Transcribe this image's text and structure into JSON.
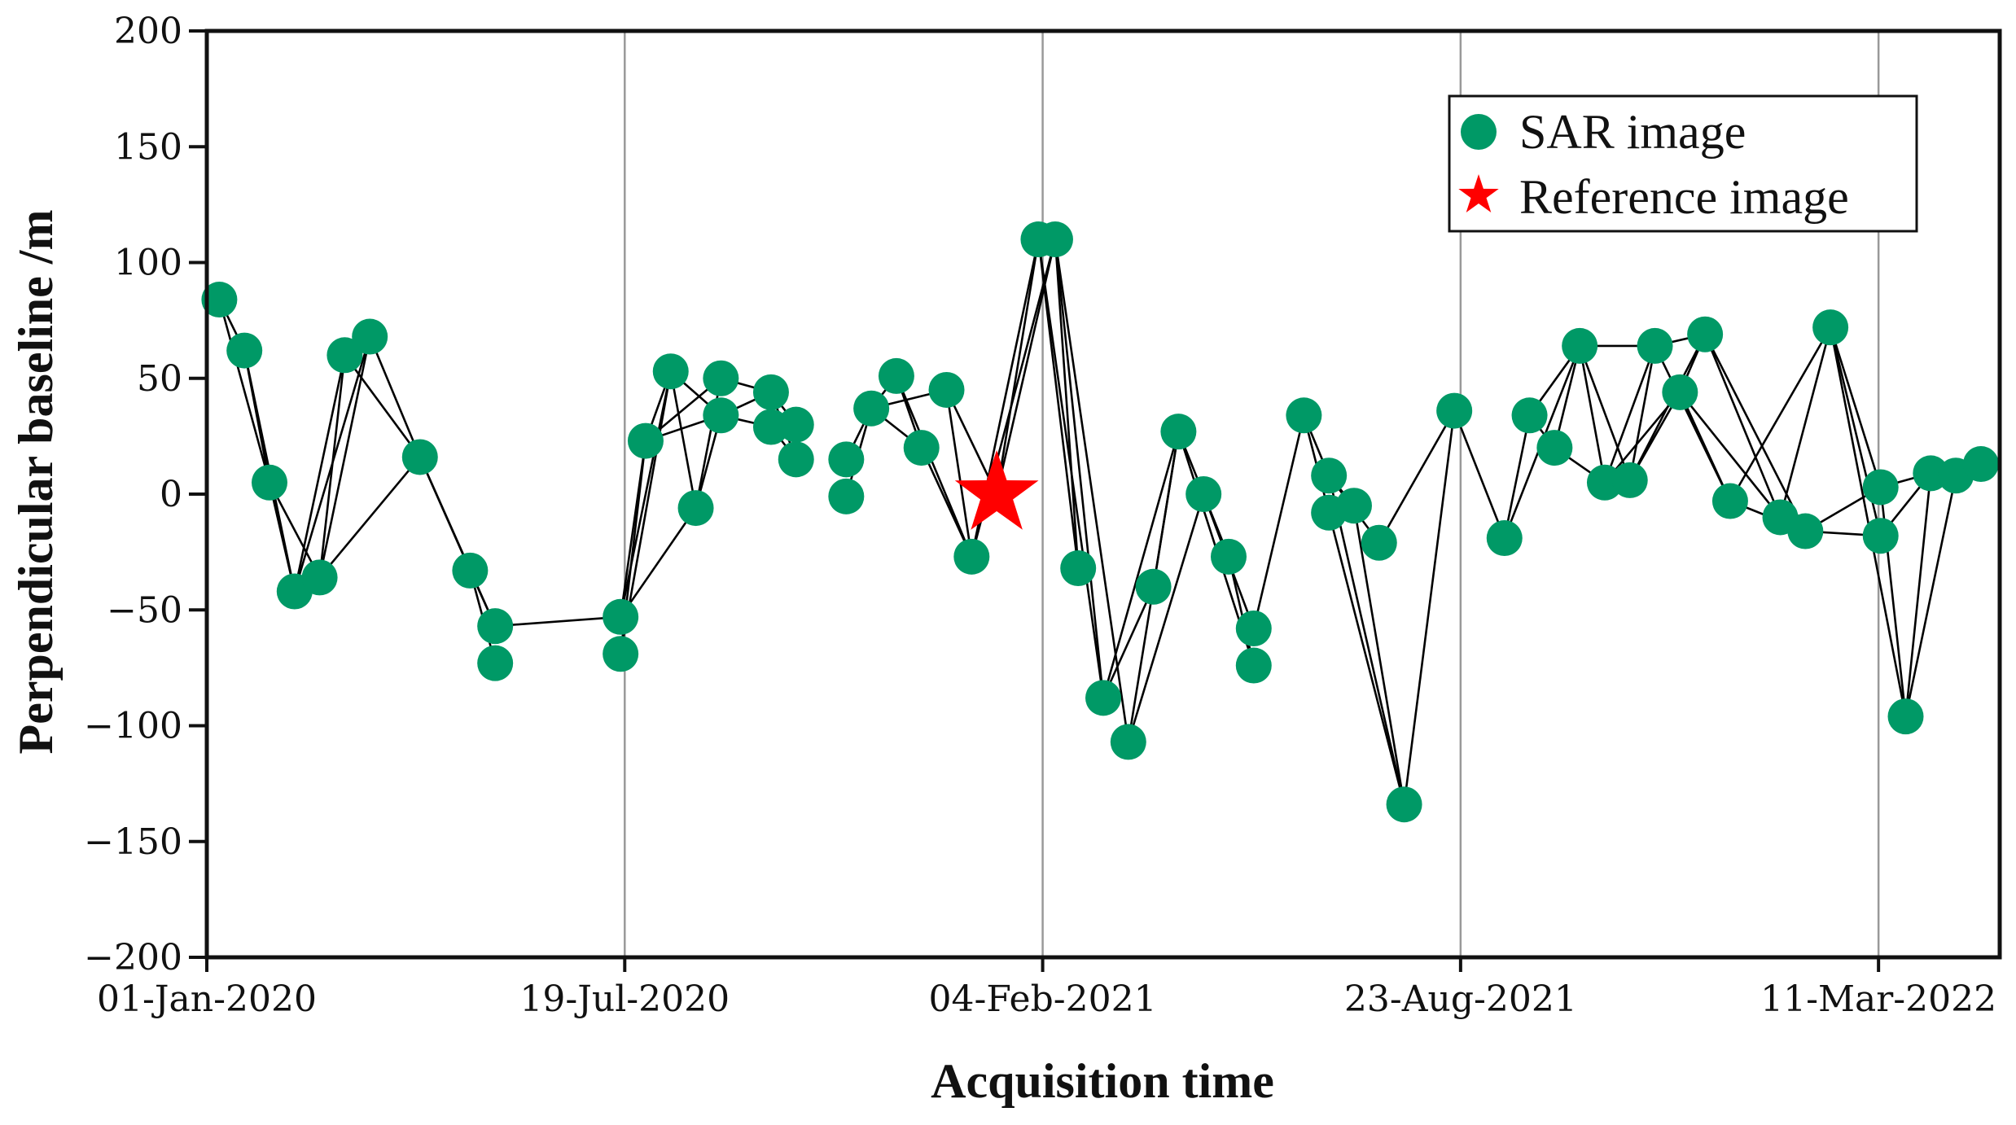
{
  "chart_data": {
    "type": "scatter",
    "xlabel": "Acquisition time",
    "ylabel": "Perpendicular baseline /m",
    "ylim": [
      -200,
      200
    ],
    "yticks": [
      200,
      150,
      100,
      50,
      0,
      -50,
      -100,
      -150,
      -200
    ],
    "ytick_labels": [
      "200",
      "150",
      "100",
      "50",
      "0",
      "−50",
      "−100",
      "−150",
      "−200"
    ],
    "xlim": [
      "2020-01-01",
      "2022-05-08"
    ],
    "xticks": [
      "2020-01-01",
      "2020-07-19",
      "2021-02-04",
      "2021-08-23",
      "2022-03-11"
    ],
    "xtick_labels": [
      "01-Jan-2020",
      "19-Jul-2020",
      "04-Feb-2021",
      "23-Aug-2021",
      "11-Mar-2022"
    ],
    "grid": "vertical lines at x ticks",
    "legend_position": "top-right",
    "colors": {
      "sar": "#009966",
      "reference": "#ff0000",
      "lines": "#000000",
      "grid": "#999999"
    },
    "series": [
      {
        "name": "SAR image",
        "marker": "circle",
        "points": [
          {
            "x": "2020-01-07",
            "y": 84
          },
          {
            "x": "2020-01-19",
            "y": 62
          },
          {
            "x": "2020-01-31",
            "y": 5
          },
          {
            "x": "2020-02-12",
            "y": -42
          },
          {
            "x": "2020-02-24",
            "y": -36
          },
          {
            "x": "2020-03-07",
            "y": 60
          },
          {
            "x": "2020-03-19",
            "y": 68
          },
          {
            "x": "2020-04-12",
            "y": 16
          },
          {
            "x": "2020-05-06",
            "y": -33
          },
          {
            "x": "2020-05-18",
            "y": -57
          },
          {
            "x": "2020-05-18",
            "y": -73
          },
          {
            "x": "2020-07-17",
            "y": -53
          },
          {
            "x": "2020-07-17",
            "y": -69
          },
          {
            "x": "2020-07-29",
            "y": 23
          },
          {
            "x": "2020-08-10",
            "y": 53
          },
          {
            "x": "2020-08-22",
            "y": -6
          },
          {
            "x": "2020-09-03",
            "y": 34
          },
          {
            "x": "2020-09-03",
            "y": 50
          },
          {
            "x": "2020-09-27",
            "y": 44
          },
          {
            "x": "2020-09-27",
            "y": 29
          },
          {
            "x": "2020-10-09",
            "y": 30
          },
          {
            "x": "2020-10-09",
            "y": 15
          },
          {
            "x": "2020-11-02",
            "y": 15
          },
          {
            "x": "2020-11-02",
            "y": -1
          },
          {
            "x": "2020-11-14",
            "y": 37
          },
          {
            "x": "2020-11-26",
            "y": 51
          },
          {
            "x": "2020-12-08",
            "y": 20
          },
          {
            "x": "2020-12-20",
            "y": 45
          },
          {
            "x": "2021-01-01",
            "y": -27
          },
          {
            "x": "2021-02-02",
            "y": 110
          },
          {
            "x": "2021-02-10",
            "y": 110
          },
          {
            "x": "2021-02-21",
            "y": -32
          },
          {
            "x": "2021-03-05",
            "y": -88
          },
          {
            "x": "2021-03-17",
            "y": -107
          },
          {
            "x": "2021-03-29",
            "y": -40
          },
          {
            "x": "2021-04-10",
            "y": 27
          },
          {
            "x": "2021-04-22",
            "y": 0
          },
          {
            "x": "2021-05-04",
            "y": -27
          },
          {
            "x": "2021-05-16",
            "y": -58
          },
          {
            "x": "2021-05-16",
            "y": -74
          },
          {
            "x": "2021-06-09",
            "y": 34
          },
          {
            "x": "2021-06-21",
            "y": 8
          },
          {
            "x": "2021-06-21",
            "y": -8
          },
          {
            "x": "2021-07-03",
            "y": -5
          },
          {
            "x": "2021-07-15",
            "y": -21
          },
          {
            "x": "2021-07-27",
            "y": -134
          },
          {
            "x": "2021-08-20",
            "y": 36
          },
          {
            "x": "2021-09-13",
            "y": -19
          },
          {
            "x": "2021-09-25",
            "y": 34
          },
          {
            "x": "2021-10-07",
            "y": 20
          },
          {
            "x": "2021-10-19",
            "y": 64
          },
          {
            "x": "2021-10-31",
            "y": 5
          },
          {
            "x": "2021-11-12",
            "y": 6
          },
          {
            "x": "2021-11-24",
            "y": 64
          },
          {
            "x": "2021-12-06",
            "y": 44
          },
          {
            "x": "2021-12-18",
            "y": 69
          },
          {
            "x": "2021-12-30",
            "y": -3
          },
          {
            "x": "2022-01-23",
            "y": -10
          },
          {
            "x": "2022-02-04",
            "y": -16
          },
          {
            "x": "2022-02-16",
            "y": 72
          },
          {
            "x": "2022-03-12",
            "y": -18
          },
          {
            "x": "2022-03-12",
            "y": 3
          },
          {
            "x": "2022-03-24",
            "y": -96
          },
          {
            "x": "2022-04-05",
            "y": 9
          },
          {
            "x": "2022-04-17",
            "y": 8
          },
          {
            "x": "2022-04-29",
            "y": 13
          }
        ]
      },
      {
        "name": "Reference image",
        "marker": "star",
        "points": [
          {
            "x": "2021-01-13",
            "y": 0
          }
        ]
      }
    ],
    "connections": [
      [
        "2020-01-07",
        84,
        "2020-01-19",
        62
      ],
      [
        "2020-01-07",
        84,
        "2020-01-31",
        5
      ],
      [
        "2020-01-19",
        62,
        "2020-01-31",
        5
      ],
      [
        "2020-01-19",
        62,
        "2020-02-12",
        -42
      ],
      [
        "2020-01-31",
        5,
        "2020-02-12",
        -42
      ],
      [
        "2020-01-31",
        5,
        "2020-02-24",
        -36
      ],
      [
        "2020-02-12",
        -42,
        "2020-03-07",
        60
      ],
      [
        "2020-02-12",
        -42,
        "2020-03-19",
        68
      ],
      [
        "2020-02-24",
        -36,
        "2020-03-07",
        60
      ],
      [
        "2020-02-24",
        -36,
        "2020-03-19",
        68
      ],
      [
        "2020-02-24",
        -36,
        "2020-04-12",
        16
      ],
      [
        "2020-03-07",
        60,
        "2020-03-19",
        68
      ],
      [
        "2020-03-19",
        68,
        "2020-04-12",
        16
      ],
      [
        "2020-03-07",
        60,
        "2020-04-12",
        16
      ],
      [
        "2020-04-12",
        16,
        "2020-05-06",
        -33
      ],
      [
        "2020-04-12",
        16,
        "2020-05-18",
        -57
      ],
      [
        "2020-05-06",
        -33,
        "2020-05-18",
        -57
      ],
      [
        "2020-05-06",
        -33,
        "2020-05-18",
        -73
      ],
      [
        "2020-05-18",
        -57,
        "2020-07-17",
        -53
      ],
      [
        "2020-07-17",
        -53,
        "2020-07-29",
        23
      ],
      [
        "2020-07-17",
        -53,
        "2020-08-10",
        53
      ],
      [
        "2020-07-17",
        -53,
        "2020-08-22",
        -6
      ],
      [
        "2020-07-17",
        -69,
        "2020-07-29",
        23
      ],
      [
        "2020-07-17",
        -69,
        "2020-08-10",
        53
      ],
      [
        "2020-07-29",
        23,
        "2020-08-10",
        53
      ],
      [
        "2020-07-29",
        23,
        "2020-09-03",
        50
      ],
      [
        "2020-07-29",
        23,
        "2020-09-03",
        34
      ],
      [
        "2020-08-10",
        53,
        "2020-08-22",
        -6
      ],
      [
        "2020-08-10",
        53,
        "2020-09-03",
        34
      ],
      [
        "2020-08-22",
        -6,
        "2020-09-03",
        34
      ],
      [
        "2020-08-22",
        -6,
        "2020-09-03",
        50
      ],
      [
        "2020-09-03",
        50,
        "2020-09-27",
        44
      ],
      [
        "2020-09-03",
        34,
        "2020-09-27",
        29
      ],
      [
        "2020-09-03",
        34,
        "2020-09-27",
        44
      ],
      [
        "2020-09-27",
        44,
        "2020-10-09",
        30
      ],
      [
        "2020-09-27",
        29,
        "2020-10-09",
        15
      ],
      [
        "2020-09-27",
        29,
        "2020-10-09",
        30
      ],
      [
        "2020-09-27",
        44,
        "2020-10-09",
        15
      ],
      [
        "2020-11-02",
        15,
        "2020-11-14",
        37
      ],
      [
        "2020-11-02",
        -1,
        "2020-11-14",
        37
      ],
      [
        "2020-11-14",
        37,
        "2020-11-26",
        51
      ],
      [
        "2020-11-14",
        37,
        "2020-12-08",
        20
      ],
      [
        "2020-11-14",
        37,
        "2020-12-20",
        45
      ],
      [
        "2020-11-26",
        51,
        "2020-12-08",
        20
      ],
      [
        "2020-11-26",
        51,
        "2021-01-01",
        -27
      ],
      [
        "2020-12-08",
        20,
        "2021-01-01",
        -27
      ],
      [
        "2020-12-20",
        45,
        "2021-01-01",
        -27
      ],
      [
        "2020-12-20",
        45,
        "2021-01-13",
        0
      ],
      [
        "2021-01-01",
        -27,
        "2021-02-02",
        110
      ],
      [
        "2021-01-01",
        -27,
        "2021-02-10",
        110
      ],
      [
        "2021-01-13",
        0,
        "2021-02-02",
        110
      ],
      [
        "2021-01-13",
        0,
        "2021-02-10",
        110
      ],
      [
        "2021-02-02",
        110,
        "2021-02-10",
        110
      ],
      [
        "2021-02-02",
        110,
        "2021-02-21",
        -32
      ],
      [
        "2021-02-02",
        110,
        "2021-03-05",
        -88
      ],
      [
        "2021-02-10",
        110,
        "2021-02-21",
        -32
      ],
      [
        "2021-02-10",
        110,
        "2021-03-05",
        -88
      ],
      [
        "2021-02-10",
        110,
        "2021-03-17",
        -107
      ],
      [
        "2021-03-05",
        -88,
        "2021-03-29",
        -40
      ],
      [
        "2021-03-05",
        -88,
        "2021-04-10",
        27
      ],
      [
        "2021-03-17",
        -107,
        "2021-04-10",
        27
      ],
      [
        "2021-03-17",
        -107,
        "2021-04-22",
        0
      ],
      [
        "2021-03-29",
        -40,
        "2021-04-10",
        27
      ],
      [
        "2021-04-10",
        27,
        "2021-05-04",
        -27
      ],
      [
        "2021-04-22",
        0,
        "2021-05-04",
        -27
      ],
      [
        "2021-04-22",
        0,
        "2021-05-16",
        -58
      ],
      [
        "2021-04-10",
        27,
        "2021-05-16",
        -74
      ],
      [
        "2021-05-04",
        -27,
        "2021-05-16",
        -74
      ],
      [
        "2021-05-16",
        -58,
        "2021-06-09",
        34
      ],
      [
        "2021-06-09",
        34,
        "2021-06-21",
        8
      ],
      [
        "2021-06-09",
        34,
        "2021-06-21",
        -8
      ],
      [
        "2021-06-21",
        8,
        "2021-07-03",
        -5
      ],
      [
        "2021-06-21",
        8,
        "2021-07-15",
        -21
      ],
      [
        "2021-06-21",
        -8,
        "2021-07-27",
        -134
      ],
      [
        "2021-06-21",
        8,
        "2021-07-27",
        -134
      ],
      [
        "2021-07-03",
        -5,
        "2021-07-27",
        -134
      ],
      [
        "2021-07-27",
        -134,
        "2021-08-20",
        36
      ],
      [
        "2021-07-15",
        -21,
        "2021-08-20",
        36
      ],
      [
        "2021-08-20",
        36,
        "2021-09-13",
        -19
      ],
      [
        "2021-09-13",
        -19,
        "2021-09-25",
        34
      ],
      [
        "2021-09-13",
        -19,
        "2021-10-19",
        64
      ],
      [
        "2021-09-25",
        34,
        "2021-10-07",
        20
      ],
      [
        "2021-09-25",
        34,
        "2021-10-19",
        64
      ],
      [
        "2021-10-07",
        20,
        "2021-10-19",
        64
      ],
      [
        "2021-10-07",
        20,
        "2021-10-31",
        5
      ],
      [
        "2021-10-19",
        64,
        "2021-10-31",
        5
      ],
      [
        "2021-10-19",
        64,
        "2021-11-12",
        6
      ],
      [
        "2021-10-19",
        64,
        "2021-11-24",
        64
      ],
      [
        "2021-10-31",
        5,
        "2021-11-24",
        64
      ],
      [
        "2021-11-12",
        6,
        "2021-11-24",
        64
      ],
      [
        "2021-11-12",
        6,
        "2021-12-06",
        44
      ],
      [
        "2021-11-12",
        6,
        "2021-12-18",
        69
      ],
      [
        "2021-10-31",
        5,
        "2021-12-06",
        44
      ],
      [
        "2021-11-24",
        64,
        "2021-12-18",
        69
      ],
      [
        "2021-11-24",
        64,
        "2021-12-30",
        -3
      ],
      [
        "2021-12-06",
        44,
        "2021-12-18",
        69
      ],
      [
        "2021-12-06",
        44,
        "2021-12-30",
        -3
      ],
      [
        "2021-12-06",
        44,
        "2022-01-23",
        -10
      ],
      [
        "2021-12-18",
        69,
        "2022-01-23",
        -10
      ],
      [
        "2021-12-18",
        69,
        "2022-02-04",
        -16
      ],
      [
        "2021-12-30",
        -3,
        "2022-02-16",
        72
      ],
      [
        "2021-12-30",
        -3,
        "2022-02-04",
        -16
      ],
      [
        "2022-01-23",
        -10,
        "2022-02-16",
        72
      ],
      [
        "2022-01-23",
        -10,
        "2022-02-04",
        -16
      ],
      [
        "2022-02-04",
        -16,
        "2022-03-12",
        3
      ],
      [
        "2022-02-16",
        72,
        "2022-03-12",
        -18
      ],
      [
        "2022-02-16",
        72,
        "2022-03-24",
        -96
      ],
      [
        "2022-02-16",
        72,
        "2022-03-12",
        3
      ],
      [
        "2022-02-04",
        -16,
        "2022-03-12",
        -18
      ],
      [
        "2022-03-12",
        -18,
        "2022-04-05",
        9
      ],
      [
        "2022-03-12",
        3,
        "2022-03-24",
        -96
      ],
      [
        "2022-03-24",
        -96,
        "2022-04-05",
        9
      ],
      [
        "2022-03-24",
        -96,
        "2022-04-17",
        8
      ],
      [
        "2022-03-12",
        3,
        "2022-04-05",
        9
      ],
      [
        "2022-04-05",
        9,
        "2022-04-29",
        13
      ],
      [
        "2022-04-17",
        8,
        "2022-04-29",
        13
      ]
    ]
  }
}
